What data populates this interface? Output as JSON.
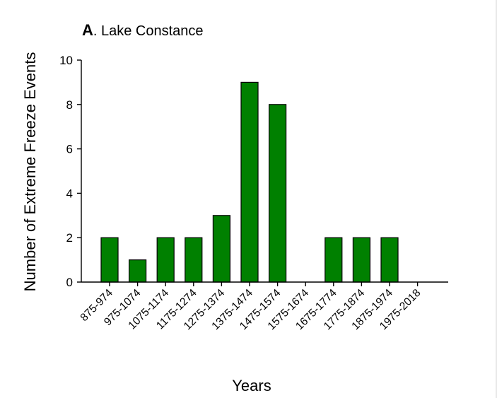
{
  "chart_data": {
    "type": "bar",
    "panel_letter": "A",
    "title": ". Lake Constance",
    "xlabel": "Years",
    "ylabel": "Number of Extreme Freeze Events",
    "ylim": [
      0,
      10
    ],
    "yticks": [
      0,
      2,
      4,
      6,
      8,
      10
    ],
    "categories": [
      "875-974",
      "975-1074",
      "1075-1174",
      "1175-1274",
      "1275-1374",
      "1375-1474",
      "1475-1574",
      "1575-1674",
      "1675-1774",
      "1775-1874",
      "1875-1974",
      "1975-2018"
    ],
    "values": [
      2,
      1,
      2,
      2,
      3,
      9,
      8,
      0,
      2,
      2,
      2,
      0
    ],
    "bar_color": "#008000",
    "grid": false,
    "legend": "none"
  }
}
